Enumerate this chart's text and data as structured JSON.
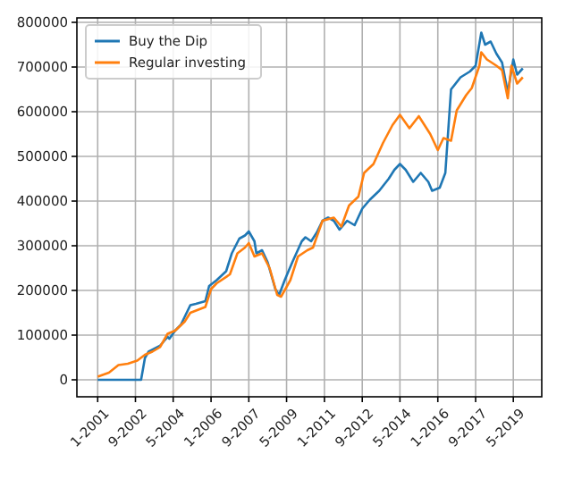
{
  "chart_data": {
    "type": "line",
    "legend": "top left",
    "grid": true,
    "xlim": [
      "2000-02",
      "2020-08"
    ],
    "ylim": [
      -38000,
      810000
    ],
    "xticks": [
      {
        "value": "2001-01",
        "label": "1-2001"
      },
      {
        "value": "2002-09",
        "label": "9-2002"
      },
      {
        "value": "2004-05",
        "label": "5-2004"
      },
      {
        "value": "2006-01",
        "label": "1-2006"
      },
      {
        "value": "2007-09",
        "label": "9-2007"
      },
      {
        "value": "2009-05",
        "label": "5-2009"
      },
      {
        "value": "2011-01",
        "label": "1-2011"
      },
      {
        "value": "2012-09",
        "label": "9-2012"
      },
      {
        "value": "2014-05",
        "label": "5-2014"
      },
      {
        "value": "2016-01",
        "label": "1-2016"
      },
      {
        "value": "2017-09",
        "label": "9-2017"
      },
      {
        "value": "2019-05",
        "label": "5-2019"
      }
    ],
    "yticks": [
      0,
      100000,
      200000,
      300000,
      400000,
      500000,
      600000,
      700000,
      800000
    ],
    "series": [
      {
        "name": "Buy the Dip",
        "color": "#1f77b4",
        "x": [
          "2001-01",
          "2002-12",
          "2003-02",
          "2003-04",
          "2003-10",
          "2004-02",
          "2004-03",
          "2004-06",
          "2004-09",
          "2005-02",
          "2005-05",
          "2005-10",
          "2005-12",
          "2006-04",
          "2006-09",
          "2006-12",
          "2007-04",
          "2007-07",
          "2007-09",
          "2007-12",
          "2008-01",
          "2008-04",
          "2008-07",
          "2008-11",
          "2009-01",
          "2009-04",
          "2009-08",
          "2010-01",
          "2010-03",
          "2010-06",
          "2010-09",
          "2010-12",
          "2011-03",
          "2011-06",
          "2011-09",
          "2012-01",
          "2012-05",
          "2012-09",
          "2013-01",
          "2013-06",
          "2013-11",
          "2014-02",
          "2014-05",
          "2014-08",
          "2014-12",
          "2015-04",
          "2015-08",
          "2015-10",
          "2016-02",
          "2016-05",
          "2016-08",
          "2017-01",
          "2017-06",
          "2017-09",
          "2017-12",
          "2018-02",
          "2018-05",
          "2018-08",
          "2018-11",
          "2019-02",
          "2019-05",
          "2019-07",
          "2019-10"
        ],
        "values": [
          0,
          0,
          49000,
          63000,
          76000,
          96000,
          92000,
          110000,
          123000,
          167000,
          170000,
          176000,
          210000,
          223000,
          243000,
          283000,
          316000,
          323000,
          332000,
          310000,
          283000,
          290000,
          263000,
          203000,
          190000,
          223000,
          263000,
          310000,
          319000,
          310000,
          330000,
          356000,
          363000,
          356000,
          336000,
          356000,
          346000,
          383000,
          403000,
          423000,
          450000,
          470000,
          483000,
          470000,
          443000,
          463000,
          443000,
          423000,
          430000,
          463000,
          650000,
          677000,
          690000,
          703000,
          777000,
          750000,
          757000,
          730000,
          710000,
          643000,
          717000,
          683000,
          697000
        ]
      },
      {
        "name": "Regular investing",
        "color": "#ff7f0e",
        "x": [
          "2001-01",
          "2001-07",
          "2001-12",
          "2002-05",
          "2002-10",
          "2003-02",
          "2003-06",
          "2003-10",
          "2004-02",
          "2004-06",
          "2004-11",
          "2005-02",
          "2005-10",
          "2006-01",
          "2006-04",
          "2006-11",
          "2007-03",
          "2007-07",
          "2007-09",
          "2007-12",
          "2008-04",
          "2008-08",
          "2008-12",
          "2009-02",
          "2009-07",
          "2009-11",
          "2010-04",
          "2010-07",
          "2010-12",
          "2011-06",
          "2011-10",
          "2012-02",
          "2012-07",
          "2012-10",
          "2013-03",
          "2013-08",
          "2014-01",
          "2014-05",
          "2014-10",
          "2015-03",
          "2015-06",
          "2015-09",
          "2016-01",
          "2016-04",
          "2016-08",
          "2016-11",
          "2017-04",
          "2017-07",
          "2017-11",
          "2017-12",
          "2018-03",
          "2018-08",
          "2018-11",
          "2019-02",
          "2019-04",
          "2019-07",
          "2019-10"
        ],
        "values": [
          7000,
          16000,
          33000,
          36000,
          43000,
          56000,
          63000,
          73000,
          103000,
          110000,
          130000,
          150000,
          163000,
          203000,
          216000,
          236000,
          283000,
          296000,
          306000,
          276000,
          283000,
          250000,
          190000,
          186000,
          223000,
          276000,
          290000,
          296000,
          356000,
          363000,
          343000,
          390000,
          410000,
          463000,
          483000,
          530000,
          570000,
          593000,
          563000,
          590000,
          570000,
          550000,
          514000,
          541000,
          535000,
          603000,
          637000,
          653000,
          703000,
          733000,
          717000,
          703000,
          693000,
          630000,
          703000,
          663000,
          677000
        ]
      }
    ]
  }
}
